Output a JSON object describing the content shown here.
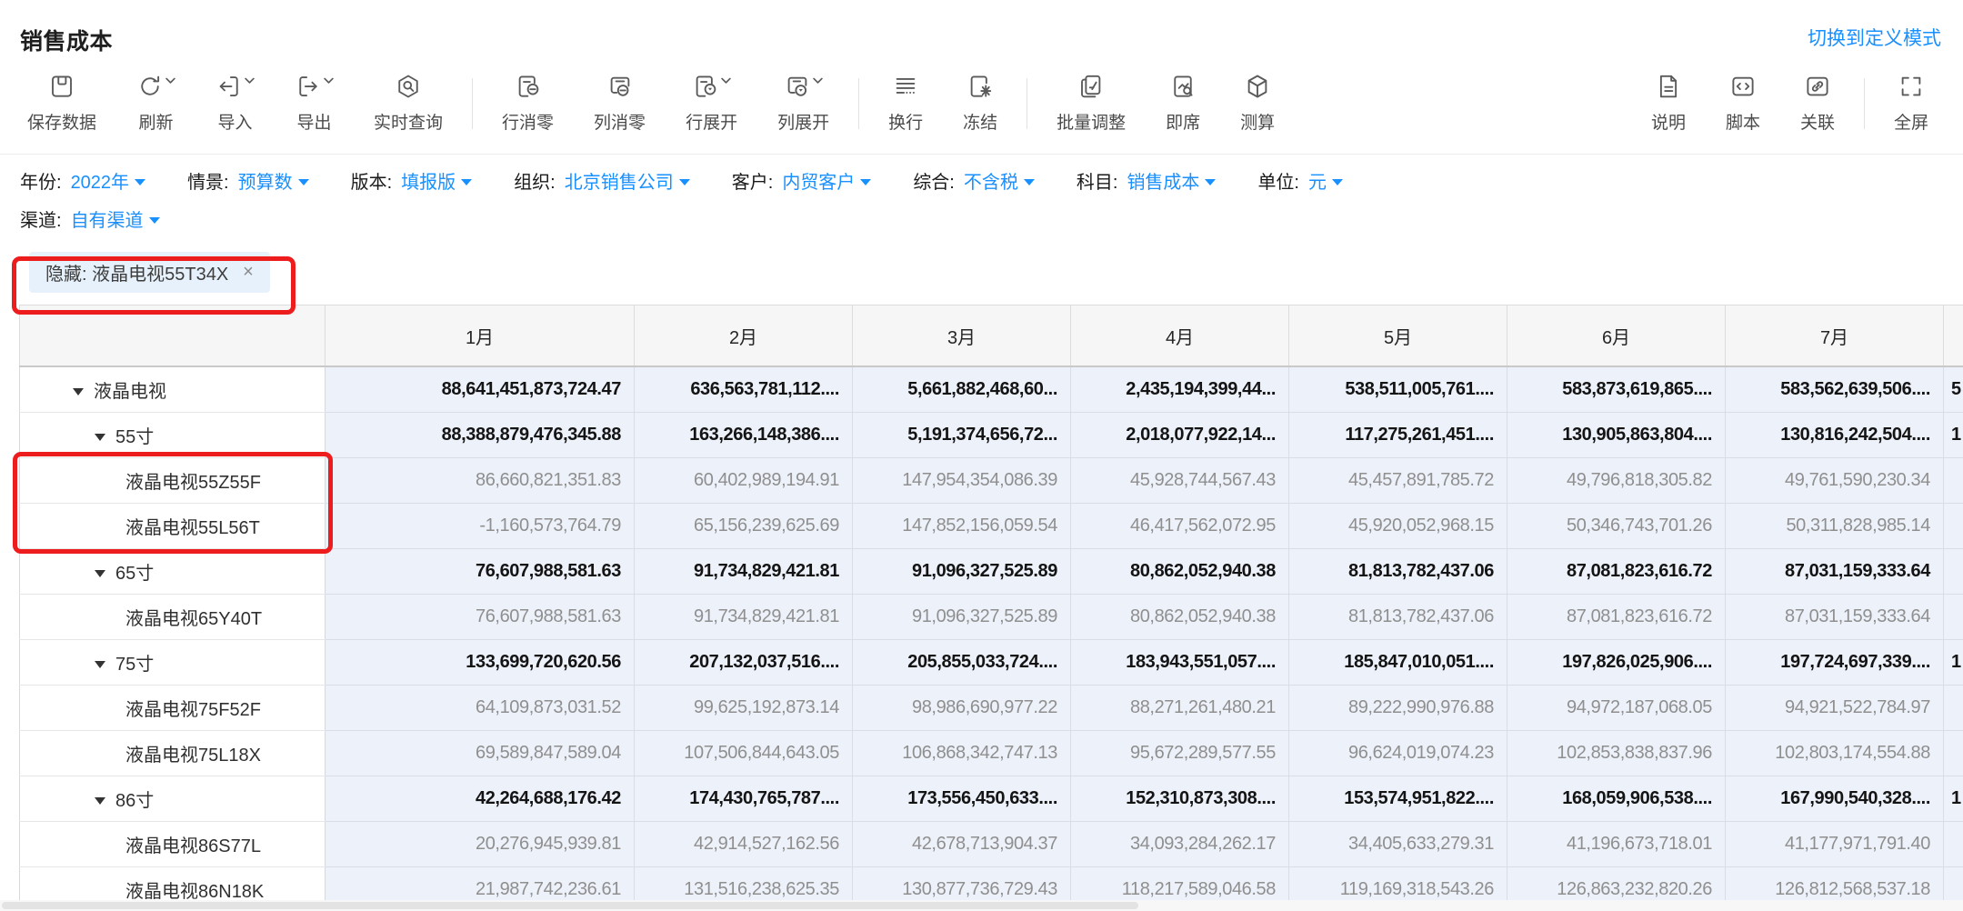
{
  "page": {
    "title": "销售成本",
    "mode_link": "切换到定义模式"
  },
  "colors": {
    "accent": "#1890ff",
    "annotation_red": "#ee1d1d",
    "cell_bg": "#edf1fa",
    "tag_bg": "#e7f1fb"
  },
  "toolbar": {
    "groups": [
      {
        "items": [
          {
            "key": "save-data",
            "icon": "save",
            "label": "保存数据",
            "chevron": false
          },
          {
            "key": "refresh",
            "icon": "refresh",
            "label": "刷新",
            "chevron": true
          },
          {
            "key": "import",
            "icon": "import",
            "label": "导入",
            "chevron": true
          },
          {
            "key": "export",
            "icon": "export",
            "label": "导出",
            "chevron": true
          },
          {
            "key": "realtime-query",
            "icon": "realtime-query",
            "label": "实时查询",
            "chevron": false
          }
        ]
      },
      {
        "items": [
          {
            "key": "row-clear-zero",
            "icon": "row-clear-zero",
            "label": "行消零",
            "chevron": false
          },
          {
            "key": "col-clear-zero",
            "icon": "col-clear-zero",
            "label": "列消零",
            "chevron": false
          },
          {
            "key": "row-expand",
            "icon": "row-expand",
            "label": "行展开",
            "chevron": true
          },
          {
            "key": "col-expand",
            "icon": "col-expand",
            "label": "列展开",
            "chevron": true
          }
        ]
      },
      {
        "items": [
          {
            "key": "wrap-line",
            "icon": "wrap",
            "label": "换行",
            "chevron": false
          },
          {
            "key": "freeze",
            "icon": "freeze",
            "label": "冻结",
            "chevron": false
          }
        ]
      },
      {
        "items": [
          {
            "key": "batch-adjust",
            "icon": "batch-adjust",
            "label": "批量调整",
            "chevron": false
          },
          {
            "key": "adhoc",
            "icon": "adhoc",
            "label": "即席",
            "chevron": false
          },
          {
            "key": "calculate",
            "icon": "calculate",
            "label": "测算",
            "chevron": false
          }
        ]
      },
      {
        "items": [
          {
            "key": "note",
            "icon": "note",
            "label": "说明",
            "chevron": false
          },
          {
            "key": "script",
            "icon": "script",
            "label": "脚本",
            "chevron": false
          },
          {
            "key": "relate",
            "icon": "link",
            "label": "关联",
            "chevron": false
          }
        ]
      },
      {
        "items": [
          {
            "key": "fullscreen",
            "icon": "fullscreen",
            "label": "全屏",
            "chevron": false
          }
        ]
      }
    ]
  },
  "filters": {
    "row1": [
      {
        "key": "year",
        "label": "年份:",
        "value": "2022年"
      },
      {
        "key": "scenario",
        "label": "情景:",
        "value": "预算数"
      },
      {
        "key": "version",
        "label": "版本:",
        "value": "填报版"
      },
      {
        "key": "org",
        "label": "组织:",
        "value": "北京销售公司"
      },
      {
        "key": "customer",
        "label": "客户:",
        "value": "内贸客户"
      },
      {
        "key": "composite",
        "label": "综合:",
        "value": "不含税"
      },
      {
        "key": "subject",
        "label": "科目:",
        "value": "销售成本"
      },
      {
        "key": "unit",
        "label": "单位:",
        "value": "元"
      }
    ],
    "row2": [
      {
        "key": "channel",
        "label": "渠道:",
        "value": "自有渠道"
      }
    ]
  },
  "hidden_tag": {
    "text": "隐藏: 液晶电视55T34X",
    "close": "×"
  },
  "table": {
    "columns": [
      "1月",
      "2月",
      "3月",
      "4月",
      "5月",
      "6月",
      "7月"
    ],
    "rows": [
      {
        "name": "液晶电视",
        "level": 0,
        "type": "group",
        "values": [
          "88,641,451,873,724.47",
          "636,563,781,112....",
          "5,661,882,468,60...",
          "2,435,194,399,44...",
          "538,511,005,761....",
          "583,873,619,865....",
          "583,562,639,506...."
        ],
        "partial": "5"
      },
      {
        "name": "55寸",
        "level": 1,
        "type": "group",
        "values": [
          "88,388,879,476,345.88",
          "163,266,148,386....",
          "5,191,374,656,72...",
          "2,018,077,922,14...",
          "117,275,261,451....",
          "130,905,863,804....",
          "130,816,242,504...."
        ],
        "partial": "1"
      },
      {
        "name": "液晶电视55Z55F",
        "level": 2,
        "type": "leaf",
        "values": [
          "86,660,821,351.83",
          "60,402,989,194.91",
          "147,954,354,086.39",
          "45,928,744,567.43",
          "45,457,891,785.72",
          "49,796,818,305.82",
          "49,761,590,230.34"
        ],
        "partial": ""
      },
      {
        "name": "液晶电视55L56T",
        "level": 2,
        "type": "leaf",
        "values": [
          "-1,160,573,764.79",
          "65,156,239,625.69",
          "147,852,156,059.54",
          "46,417,562,072.95",
          "45,920,052,968.15",
          "50,346,743,701.26",
          "50,311,828,985.14"
        ],
        "partial": ""
      },
      {
        "name": "65寸",
        "level": 1,
        "type": "group",
        "values": [
          "76,607,988,581.63",
          "91,734,829,421.81",
          "91,096,327,525.89",
          "80,862,052,940.38",
          "81,813,782,437.06",
          "87,081,823,616.72",
          "87,031,159,333.64"
        ],
        "partial": ""
      },
      {
        "name": "液晶电视65Y40T",
        "level": 2,
        "type": "leaf",
        "values": [
          "76,607,988,581.63",
          "91,734,829,421.81",
          "91,096,327,525.89",
          "80,862,052,940.38",
          "81,813,782,437.06",
          "87,081,823,616.72",
          "87,031,159,333.64"
        ],
        "partial": ""
      },
      {
        "name": "75寸",
        "level": 1,
        "type": "group",
        "values": [
          "133,699,720,620.56",
          "207,132,037,516....",
          "205,855,033,724....",
          "183,943,551,057....",
          "185,847,010,051....",
          "197,826,025,906....",
          "197,724,697,339...."
        ],
        "partial": "1"
      },
      {
        "name": "液晶电视75F52F",
        "level": 2,
        "type": "leaf",
        "values": [
          "64,109,873,031.52",
          "99,625,192,873.14",
          "98,986,690,977.22",
          "88,271,261,480.21",
          "89,222,990,976.88",
          "94,972,187,068.05",
          "94,921,522,784.97"
        ],
        "partial": ""
      },
      {
        "name": "液晶电视75L18X",
        "level": 2,
        "type": "leaf",
        "values": [
          "69,589,847,589.04",
          "107,506,844,643.05",
          "106,868,342,747.13",
          "95,672,289,577.55",
          "96,624,019,074.23",
          "102,853,838,837.96",
          "102,803,174,554.88"
        ],
        "partial": ""
      },
      {
        "name": "86寸",
        "level": 1,
        "type": "group",
        "values": [
          "42,264,688,176.42",
          "174,430,765,787....",
          "173,556,450,633....",
          "152,310,873,308....",
          "153,574,951,822....",
          "168,059,906,538....",
          "167,990,540,328...."
        ],
        "partial": "1"
      },
      {
        "name": "液晶电视86S77L",
        "level": 2,
        "type": "leaf",
        "values": [
          "20,276,945,939.81",
          "42,914,527,162.56",
          "42,678,713,904.37",
          "34,093,284,262.17",
          "34,405,633,279.31",
          "41,196,673,718.01",
          "41,177,971,791.40"
        ],
        "partial": ""
      },
      {
        "name": "液晶电视86N18K",
        "level": 2,
        "type": "leaf",
        "values": [
          "21,987,742,236.61",
          "131,516,238,625.35",
          "130,877,736,729.43",
          "118,217,589,046.58",
          "119,169,318,543.26",
          "126,863,232,820.26",
          "126,812,568,537.18"
        ],
        "partial": ""
      }
    ]
  }
}
